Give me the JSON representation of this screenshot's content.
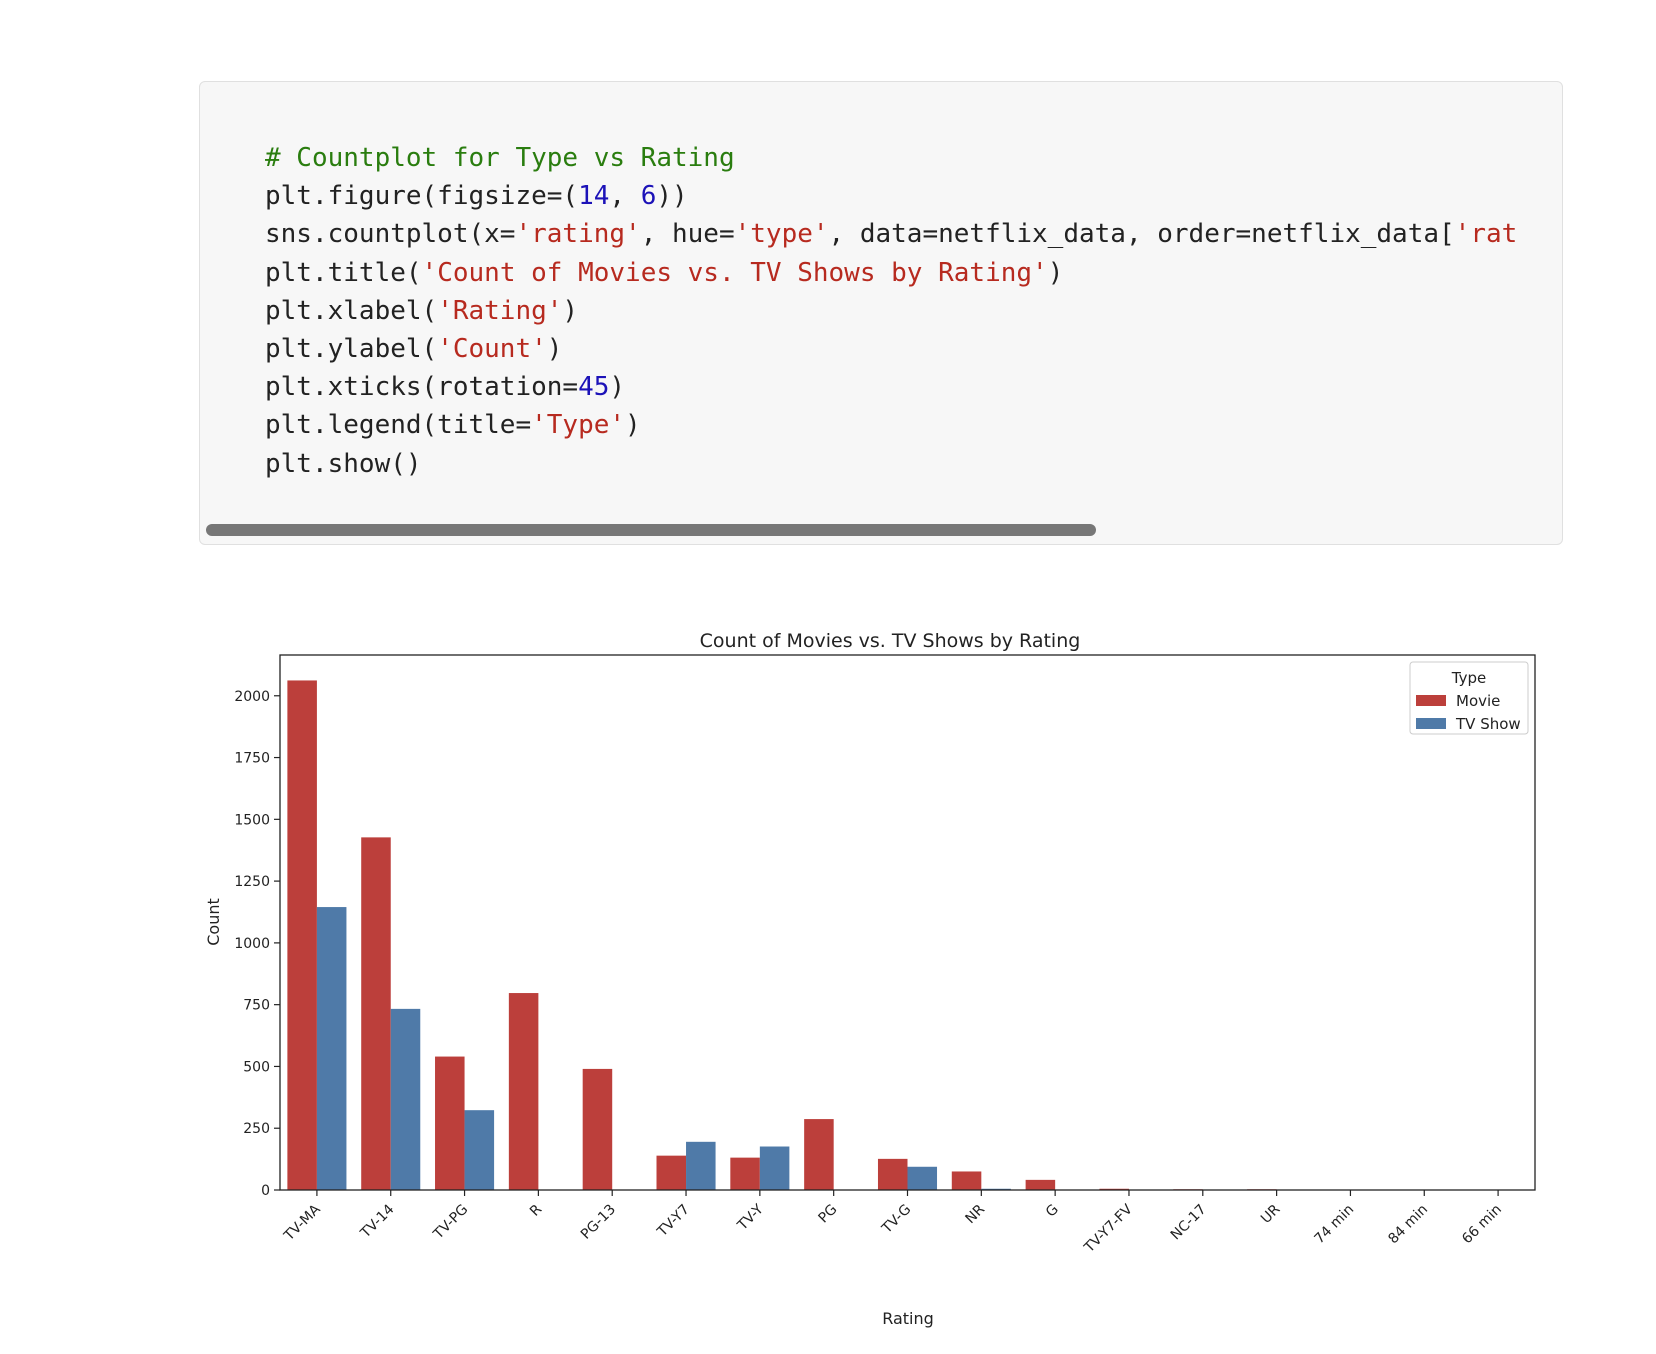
{
  "code_cell": {
    "lines": [
      [
        {
          "t": "comment",
          "v": "# Countplot for Type vs Rating"
        }
      ],
      [
        {
          "t": "plain",
          "v": "plt.figure(figsize=("
        },
        {
          "t": "number",
          "v": "14"
        },
        {
          "t": "plain",
          "v": ", "
        },
        {
          "t": "number",
          "v": "6"
        },
        {
          "t": "plain",
          "v": "))"
        }
      ],
      [
        {
          "t": "plain",
          "v": "sns.countplot(x="
        },
        {
          "t": "string",
          "v": "'rating'"
        },
        {
          "t": "plain",
          "v": ", hue="
        },
        {
          "t": "string",
          "v": "'type'"
        },
        {
          "t": "plain",
          "v": ", data=netflix_data, order=netflix_data["
        },
        {
          "t": "string",
          "v": "'rat"
        }
      ],
      [
        {
          "t": "plain",
          "v": "plt.title("
        },
        {
          "t": "string",
          "v": "'Count of Movies vs. TV Shows by Rating'"
        },
        {
          "t": "plain",
          "v": ")"
        }
      ],
      [
        {
          "t": "plain",
          "v": "plt.xlabel("
        },
        {
          "t": "string",
          "v": "'Rating'"
        },
        {
          "t": "plain",
          "v": ")"
        }
      ],
      [
        {
          "t": "plain",
          "v": "plt.ylabel("
        },
        {
          "t": "string",
          "v": "'Count'"
        },
        {
          "t": "plain",
          "v": ")"
        }
      ],
      [
        {
          "t": "plain",
          "v": "plt.xticks(rotation="
        },
        {
          "t": "number",
          "v": "45"
        },
        {
          "t": "plain",
          "v": ")"
        }
      ],
      [
        {
          "t": "plain",
          "v": "plt.legend(title="
        },
        {
          "t": "string",
          "v": "'Type'"
        },
        {
          "t": "plain",
          "v": ")"
        }
      ],
      [
        {
          "t": "plain",
          "v": "plt.show()"
        }
      ]
    ],
    "colors": {
      "background": "#f7f7f7",
      "comment": "#2a7d0f",
      "string": "#b72a1f",
      "number": "#1c12b8",
      "plain": "#222222"
    },
    "scroll_fraction": 0.65
  },
  "chart_data": {
    "type": "bar",
    "title": "Count of Movies vs. TV Shows by Rating",
    "xlabel": "Rating",
    "ylabel": "Count",
    "categories": [
      "TV-MA",
      "TV-14",
      "TV-PG",
      "R",
      "PG-13",
      "TV-Y7",
      "TV-Y",
      "PG",
      "TV-G",
      "NR",
      "G",
      "TV-Y7-FV",
      "NC-17",
      "UR",
      "74 min",
      "84 min",
      "66 min"
    ],
    "series": [
      {
        "name": "Movie",
        "color": "#bc3f3b",
        "values": [
          2062,
          1427,
          540,
          797,
          490,
          139,
          131,
          287,
          126,
          75,
          41,
          5,
          3,
          3,
          1,
          1,
          1
        ]
      },
      {
        "name": "TV Show",
        "color": "#4f7aa8",
        "values": [
          1145,
          733,
          323,
          2,
          0,
          195,
          176,
          0,
          94,
          5,
          0,
          1,
          0,
          0,
          0,
          0,
          0
        ]
      }
    ],
    "ylim": [
      0,
      2165
    ],
    "yticks": [
      0,
      250,
      500,
      750,
      1000,
      1250,
      1500,
      1750,
      2000
    ],
    "xtick_rotation": 45,
    "legend": {
      "title": "Type",
      "placement": "top-right"
    },
    "grid": false
  }
}
